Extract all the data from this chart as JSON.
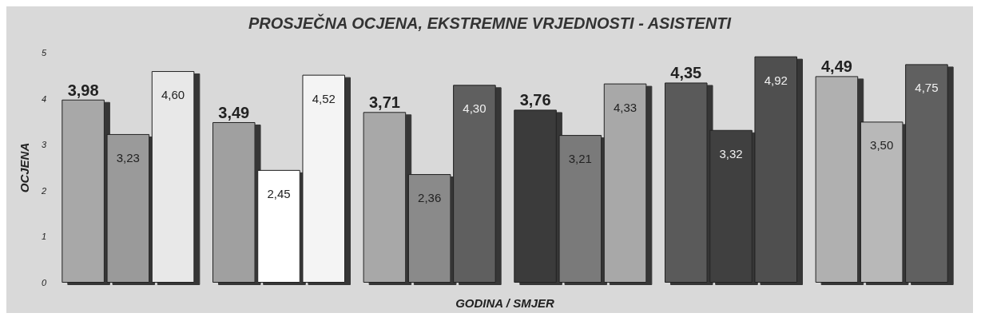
{
  "chart_data": {
    "type": "bar",
    "title": "PROSJEČNA OCJENA, EKSTREMNE VRJEDNOSTI - ASISTENTI",
    "xlabel": "GODINA / SMJER",
    "ylabel": "OCJENA",
    "categories": [
      null,
      null,
      null,
      null,
      null,
      null
    ],
    "series": [
      {
        "colors": [
          "#a8a8a8",
          "#a0a0a0",
          "#a8a8a8",
          "#3a3a3a",
          "#5a5a5a",
          "#b0b0b0"
        ],
        "values": [
          3.98,
          3.49,
          3.71,
          3.76,
          4.35,
          4.49
        ],
        "value_labels": [
          "3,98",
          "3,49",
          "3,71",
          "3,76",
          "4,35",
          "4,49"
        ]
      },
      {
        "colors": [
          "#9a9a9a",
          "#ffffff",
          "#8a8a8a",
          "#7a7a7a",
          "#404040",
          "#b8b8b8"
        ],
        "values": [
          3.23,
          2.45,
          2.36,
          3.21,
          3.32,
          3.5
        ],
        "value_labels": [
          "3,23",
          "2,45",
          "2,36",
          "3,21",
          "3,32",
          "3,50"
        ]
      },
      {
        "colors": [
          "#e8e8e8",
          "#f4f4f4",
          "#5e5e5e",
          "#a8a8a8",
          "#505050",
          "#606060"
        ],
        "values": [
          4.6,
          4.52,
          4.3,
          4.33,
          4.92,
          4.75
        ],
        "value_labels": [
          "4,60",
          "4,52",
          "4,30",
          "4,33",
          "4,92",
          "4,75"
        ]
      }
    ],
    "ylim": [
      0,
      5
    ],
    "yticks": [
      0,
      1,
      2,
      3,
      4,
      5
    ],
    "grid": false
  }
}
